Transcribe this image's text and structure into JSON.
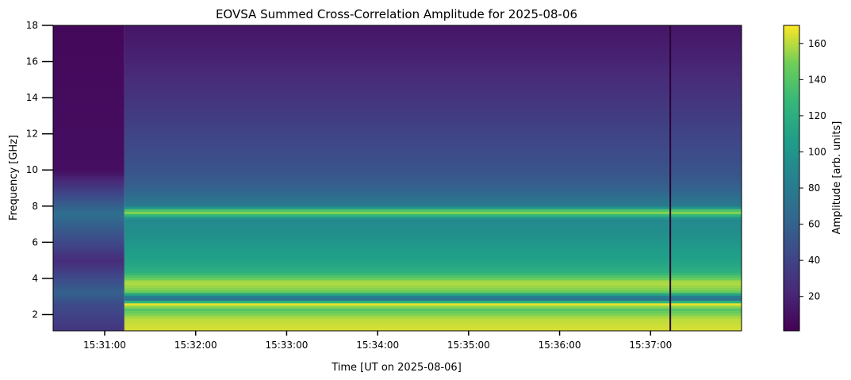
{
  "chart_data": {
    "type": "heatmap",
    "title": "EOVSA Summed Cross-Correlation Amplitude for 2025-08-06",
    "xlabel": "Time [UT on 2025-08-06]",
    "ylabel": "Frequency [GHz]",
    "colorbar_label": "Amplitude [arb. units]",
    "colormap": "viridis",
    "x_range_seconds_since_15_30_00": [
      26,
      480
    ],
    "ylim": [
      1.1,
      18
    ],
    "clim": [
      1,
      170
    ],
    "x_ticks": [
      {
        "label": "15:31:00",
        "seconds": 60
      },
      {
        "label": "15:32:00",
        "seconds": 120
      },
      {
        "label": "15:33:00",
        "seconds": 180
      },
      {
        "label": "15:34:00",
        "seconds": 240
      },
      {
        "label": "15:35:00",
        "seconds": 300
      },
      {
        "label": "15:36:00",
        "seconds": 360
      },
      {
        "label": "15:37:00",
        "seconds": 420
      }
    ],
    "y_ticks": [
      {
        "label": "2",
        "value": 2
      },
      {
        "label": "4",
        "value": 4
      },
      {
        "label": "6",
        "value": 6
      },
      {
        "label": "8",
        "value": 8
      },
      {
        "label": "10",
        "value": 10
      },
      {
        "label": "12",
        "value": 12
      },
      {
        "label": "14",
        "value": 14
      },
      {
        "label": "16",
        "value": 16
      },
      {
        "label": "18",
        "value": 18
      }
    ],
    "colorbar_ticks": [
      {
        "label": "20",
        "value": 20
      },
      {
        "label": "40",
        "value": 40
      },
      {
        "label": "60",
        "value": 60
      },
      {
        "label": "80",
        "value": 80
      },
      {
        "label": "100",
        "value": 100
      },
      {
        "label": "120",
        "value": 120
      },
      {
        "label": "140",
        "value": 140
      },
      {
        "label": "160",
        "value": 160
      }
    ],
    "data_gap_seconds": 433,
    "signal_onset_seconds": 73,
    "frequency_profile": [
      {
        "freq": 1.1,
        "amplitude": 165
      },
      {
        "freq": 1.8,
        "amplitude": 160
      },
      {
        "freq": 2.3,
        "amplitude": 140
      },
      {
        "freq": 2.6,
        "amplitude": 168
      },
      {
        "freq": 2.9,
        "amplitude": 60
      },
      {
        "freq": 3.3,
        "amplitude": 150
      },
      {
        "freq": 3.8,
        "amplitude": 160
      },
      {
        "freq": 4.4,
        "amplitude": 120
      },
      {
        "freq": 5.0,
        "amplitude": 110
      },
      {
        "freq": 5.6,
        "amplitude": 105
      },
      {
        "freq": 6.5,
        "amplitude": 95
      },
      {
        "freq": 7.3,
        "amplitude": 90
      },
      {
        "freq": 7.7,
        "amplitude": 160
      },
      {
        "freq": 8.0,
        "amplitude": 80
      },
      {
        "freq": 9.0,
        "amplitude": 60
      },
      {
        "freq": 10.0,
        "amplitude": 50
      },
      {
        "freq": 12.0,
        "amplitude": 40
      },
      {
        "freq": 14.0,
        "amplitude": 30
      },
      {
        "freq": 16.0,
        "amplitude": 20
      },
      {
        "freq": 18.0,
        "amplitude": 12
      }
    ],
    "pre_onset_profile": [
      {
        "freq": 1.1,
        "amplitude": 30
      },
      {
        "freq": 2.6,
        "amplitude": 45
      },
      {
        "freq": 3.2,
        "amplitude": 60
      },
      {
        "freq": 5.0,
        "amplitude": 25
      },
      {
        "freq": 7.6,
        "amplitude": 70
      },
      {
        "freq": 10.0,
        "amplitude": 8
      },
      {
        "freq": 18.0,
        "amplitude": 5
      }
    ]
  }
}
